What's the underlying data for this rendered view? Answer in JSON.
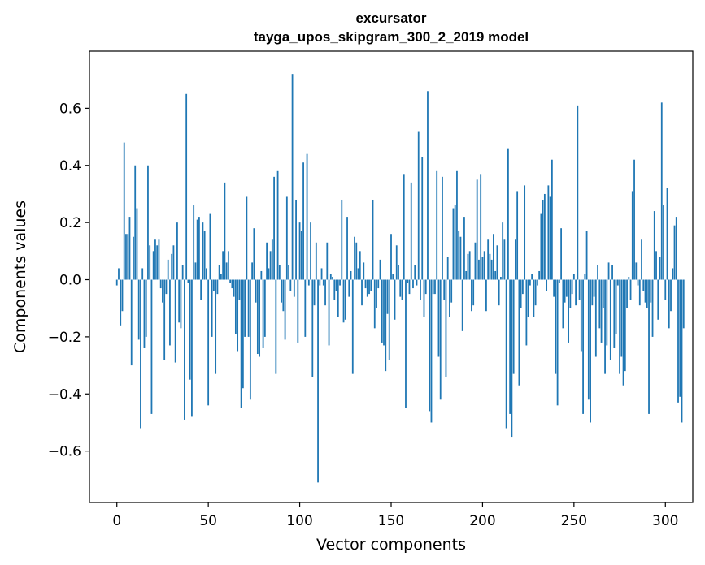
{
  "chart_data": {
    "type": "bar",
    "title": "excursator",
    "subtitle": "tayga_upos_skipgram_300_2_2019 model",
    "xlabel": "Vector components",
    "ylabel": "Components values",
    "xlim": [
      -15,
      315
    ],
    "ylim": [
      -0.78,
      0.8
    ],
    "xticks": [
      0,
      50,
      100,
      150,
      200,
      250,
      300
    ],
    "xtick_labels": [
      "0",
      "50",
      "100",
      "150",
      "200",
      "250",
      "300"
    ],
    "yticks": [
      -0.6,
      -0.4,
      -0.2,
      0.0,
      0.2,
      0.4,
      0.6
    ],
    "ytick_labels": [
      "−0.6",
      "−0.4",
      "−0.2",
      "0.0",
      "0.2",
      "0.4",
      "0.6"
    ],
    "grid": false,
    "bar_color": "#1f77b4",
    "values": [
      -0.02,
      0.04,
      -0.16,
      -0.11,
      0.48,
      0.16,
      0.16,
      0.22,
      -0.3,
      0.15,
      0.4,
      0.25,
      -0.21,
      -0.52,
      0.04,
      -0.24,
      -0.2,
      0.4,
      0.12,
      -0.47,
      0.1,
      0.14,
      0.12,
      0.14,
      -0.03,
      -0.08,
      -0.28,
      -0.05,
      0.07,
      -0.23,
      0.09,
      0.12,
      -0.29,
      0.2,
      -0.15,
      -0.17,
      0.05,
      -0.49,
      0.65,
      -0.01,
      -0.35,
      -0.48,
      0.26,
      0.06,
      0.21,
      0.22,
      -0.07,
      0.2,
      0.17,
      0.04,
      -0.44,
      0.23,
      -0.2,
      -0.04,
      -0.33,
      -0.05,
      0.05,
      0.02,
      0.1,
      0.34,
      0.06,
      0.1,
      -0.01,
      -0.03,
      -0.06,
      -0.19,
      -0.25,
      -0.07,
      -0.45,
      -0.38,
      -0.2,
      0.29,
      -0.2,
      -0.42,
      0.06,
      0.18,
      -0.08,
      -0.26,
      -0.27,
      0.03,
      -0.24,
      -0.2,
      0.13,
      0.04,
      0.1,
      0.14,
      0.36,
      -0.33,
      0.38,
      0.05,
      -0.08,
      -0.11,
      -0.21,
      0.29,
      0.05,
      -0.04,
      0.72,
      -0.06,
      0.28,
      -0.22,
      0.2,
      0.17,
      0.41,
      -0.2,
      0.44,
      -0.02,
      0.2,
      -0.34,
      -0.09,
      0.13,
      -0.71,
      -0.02,
      0.04,
      -0.02,
      -0.09,
      0.13,
      -0.23,
      0.02,
      0.01,
      -0.07,
      -0.04,
      -0.13,
      -0.02,
      0.28,
      -0.15,
      -0.14,
      0.22,
      -0.06,
      0.03,
      -0.33,
      0.15,
      0.13,
      0.04,
      0.1,
      -0.09,
      0.06,
      -0.03,
      -0.06,
      -0.05,
      -0.04,
      0.28,
      -0.17,
      -0.1,
      -0.03,
      0.07,
      -0.22,
      -0.23,
      -0.32,
      -0.12,
      -0.28,
      0.16,
      0.02,
      -0.14,
      0.12,
      0.05,
      -0.06,
      -0.07,
      0.37,
      -0.45,
      -0.01,
      -0.05,
      0.34,
      -0.03,
      0.05,
      -0.02,
      0.52,
      -0.07,
      0.43,
      -0.13,
      -0.05,
      0.66,
      -0.46,
      -0.5,
      -0.05,
      -0.05,
      0.38,
      -0.27,
      -0.42,
      0.36,
      -0.07,
      -0.34,
      0.08,
      -0.13,
      -0.08,
      0.25,
      0.26,
      0.38,
      0.17,
      0.15,
      -0.18,
      0.22,
      0.03,
      0.09,
      0.1,
      -0.11,
      -0.09,
      0.13,
      0.35,
      0.07,
      0.37,
      0.08,
      0.1,
      -0.11,
      0.14,
      0.09,
      0.07,
      0.16,
      0.03,
      0.12,
      -0.09,
      0.01,
      0.2,
      0.14,
      -0.52,
      0.46,
      -0.47,
      -0.55,
      -0.33,
      0.14,
      0.31,
      -0.37,
      -0.1,
      -0.05,
      0.33,
      -0.23,
      -0.13,
      -0.02,
      0.02,
      -0.13,
      -0.09,
      -0.02,
      0.03,
      0.23,
      0.28,
      0.3,
      -0.04,
      0.33,
      0.29,
      0.42,
      -0.06,
      -0.33,
      -0.44,
      -0.01,
      0.18,
      -0.17,
      -0.08,
      -0.06,
      -0.22,
      -0.1,
      -0.05,
      0.02,
      -0.09,
      0.61,
      -0.07,
      -0.25,
      -0.47,
      0.02,
      0.17,
      -0.42,
      -0.5,
      -0.09,
      -0.06,
      -0.27,
      0.05,
      -0.17,
      -0.22,
      -0.1,
      -0.33,
      -0.23,
      0.06,
      -0.28,
      0.05,
      -0.24,
      -0.19,
      -0.02,
      -0.33,
      -0.27,
      -0.37,
      -0.32,
      -0.1,
      0.01,
      -0.07,
      0.31,
      0.42,
      0.06,
      -0.02,
      -0.09,
      0.14,
      -0.04,
      -0.08,
      -0.1,
      -0.47,
      -0.08,
      -0.2,
      0.24,
      0.1,
      -0.14,
      0.08,
      0.62,
      0.26,
      -0.07,
      0.32,
      -0.17,
      -0.11,
      0.04,
      0.19,
      0.22,
      -0.43,
      -0.41,
      -0.5,
      -0.17
    ]
  }
}
